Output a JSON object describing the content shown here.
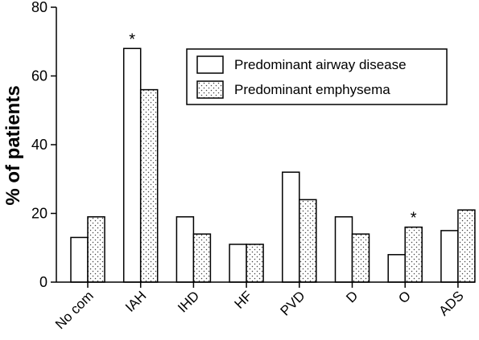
{
  "chart_data": {
    "type": "bar",
    "ylabel": "% of patients",
    "xlabel": "",
    "ylim": [
      0,
      80
    ],
    "yticks": [
      0,
      20,
      40,
      60,
      80
    ],
    "categories": [
      "No com",
      "IAH",
      "IHD",
      "HF",
      "PVD",
      "D",
      "O",
      "ADS"
    ],
    "series": [
      {
        "name": "Predominant airway disease",
        "values": [
          13,
          68,
          19,
          11,
          32,
          19,
          8,
          15
        ],
        "fill": "#ffffff"
      },
      {
        "name": "Predominant emphysema",
        "values": [
          19,
          56,
          14,
          11,
          24,
          14,
          16,
          21
        ],
        "fill": "dotted"
      }
    ],
    "annotations": [
      {
        "category": "IAH",
        "text": "*"
      },
      {
        "category": "O",
        "text": "*"
      }
    ],
    "legend": "top-right",
    "grid": false
  }
}
